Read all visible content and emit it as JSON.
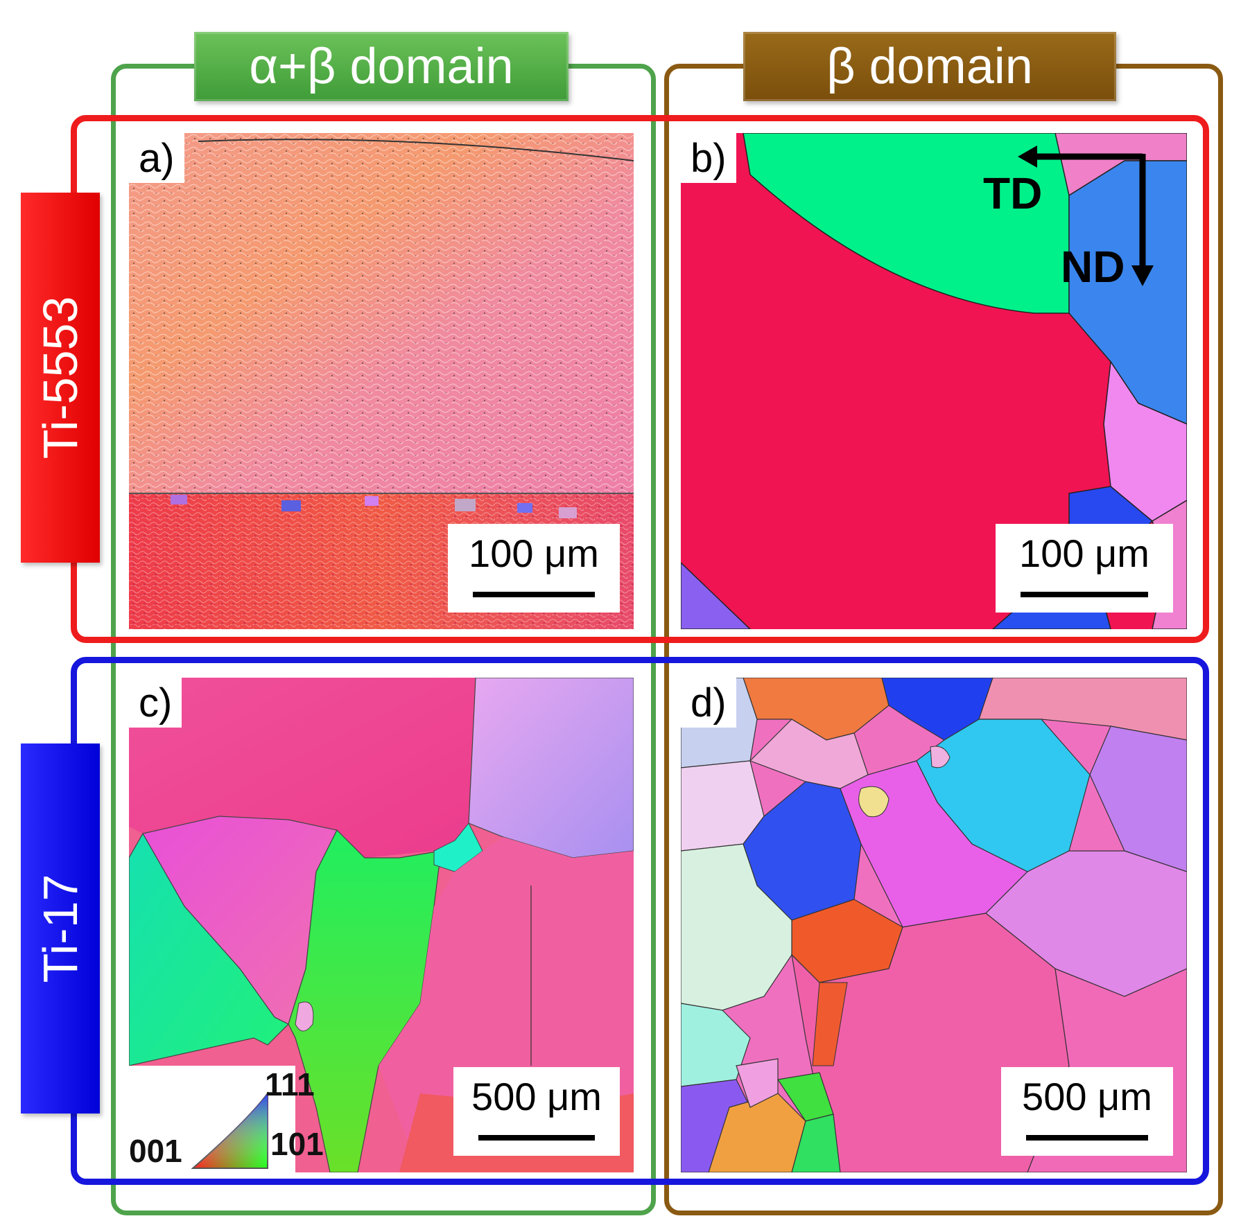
{
  "columns": [
    {
      "label": "α+β domain",
      "color": "#4ea34b"
    },
    {
      "label": "β domain",
      "color": "#8a5a12"
    }
  ],
  "rows": [
    {
      "label": "Ti-5553",
      "color": "#ee1c1c"
    },
    {
      "label": "Ti-17",
      "color": "#1616dd"
    }
  ],
  "panels": {
    "a": {
      "letter": "a)",
      "scale": "100 μm"
    },
    "b": {
      "letter": "b)",
      "scale": "100 μm",
      "axes": {
        "horizontal": "TD",
        "vertical": "ND"
      }
    },
    "c": {
      "letter": "c)",
      "scale": "500 μm",
      "ipf_key": {
        "corner_001": "001",
        "corner_101": "101",
        "corner_111": "111"
      }
    },
    "d": {
      "letter": "d)",
      "scale": "500 μm"
    }
  }
}
